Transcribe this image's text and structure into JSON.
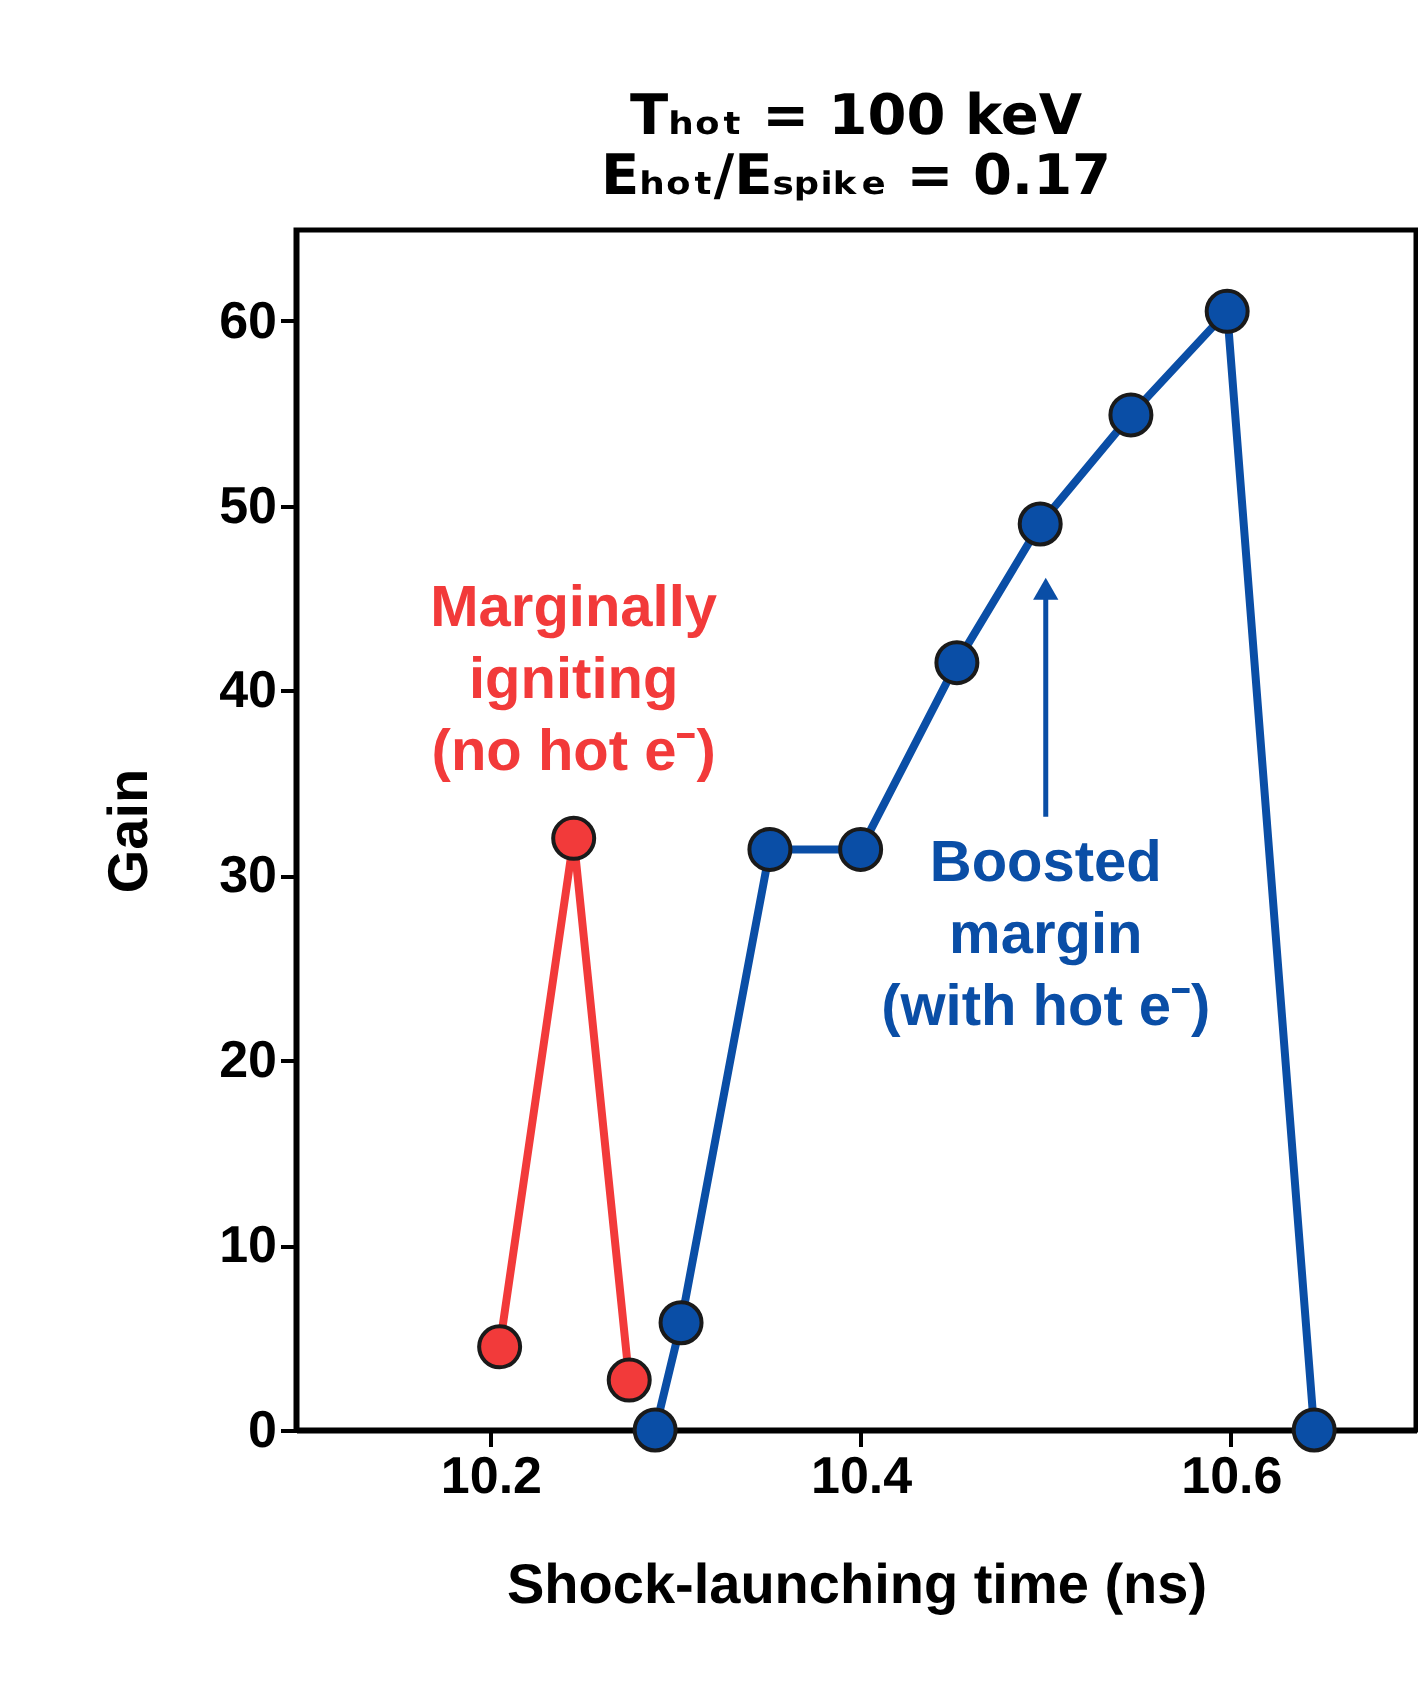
{
  "chart_data": {
    "type": "line",
    "title": "Tₕₒₜ = 100 keV",
    "subtitle": "Eₕₒₜ/Eₛₚᵢₖₑ = 0.17",
    "xlabel": "Shock-launching time (ns)",
    "ylabel": "Gain",
    "x": [
      10.289,
      10.303,
      10.351,
      10.4,
      10.452,
      10.497,
      10.546,
      10.598,
      10.645
    ],
    "series": [
      {
        "color": "#f23a3a",
        "x": [
          10.205,
          10.245,
          10.275
        ],
        "values": [
          4.5,
          32,
          2.7
        ]
      },
      {
        "color": "#0a4ea6",
        "values": [
          0,
          5.8,
          31.4,
          31.4,
          41.5,
          49,
          54.9,
          60.5,
          0
        ]
      }
    ],
    "annotations": [
      "Marginally\nigniting\n(no hot e⁻)",
      {
        "text": "Boosted\nmargin\n(with hot e⁻)",
        "x": 10.5,
        "y": 45.5
      }
    ],
    "xlim": [
      10.095,
      10.7
    ],
    "ylim": [
      0,
      64.9
    ],
    "xticks": [
      10.2,
      10.4,
      10.6
    ],
    "yticks": [
      0,
      10,
      20,
      30,
      40,
      50,
      60
    ],
    "grid": false,
    "marker": "circle",
    "line_style": "solid"
  }
}
